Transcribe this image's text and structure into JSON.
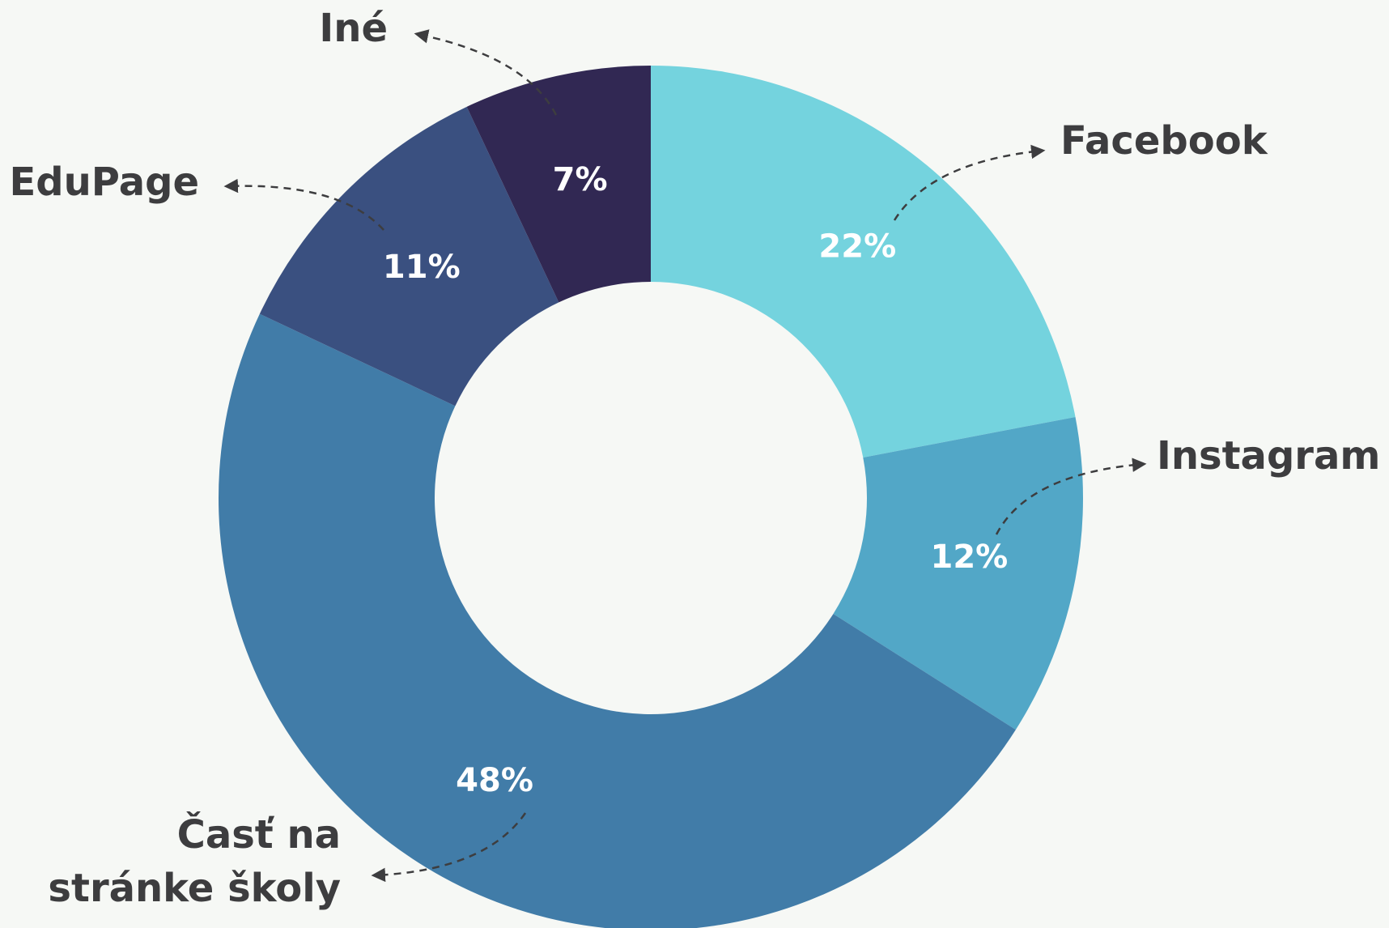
{
  "chart_data": {
    "type": "pie",
    "categories": [
      "Facebook",
      "Instagram",
      "Časť na\nstránke školy",
      "EduPage",
      "Iné"
    ],
    "values": [
      22,
      12,
      48,
      11,
      7
    ],
    "value_labels": [
      "22%",
      "12%",
      "48%",
      "11%",
      "7%"
    ],
    "colors": [
      "#74d3de",
      "#52a7c7",
      "#417ca8",
      "#3a5080",
      "#312853"
    ],
    "donut": true
  }
}
